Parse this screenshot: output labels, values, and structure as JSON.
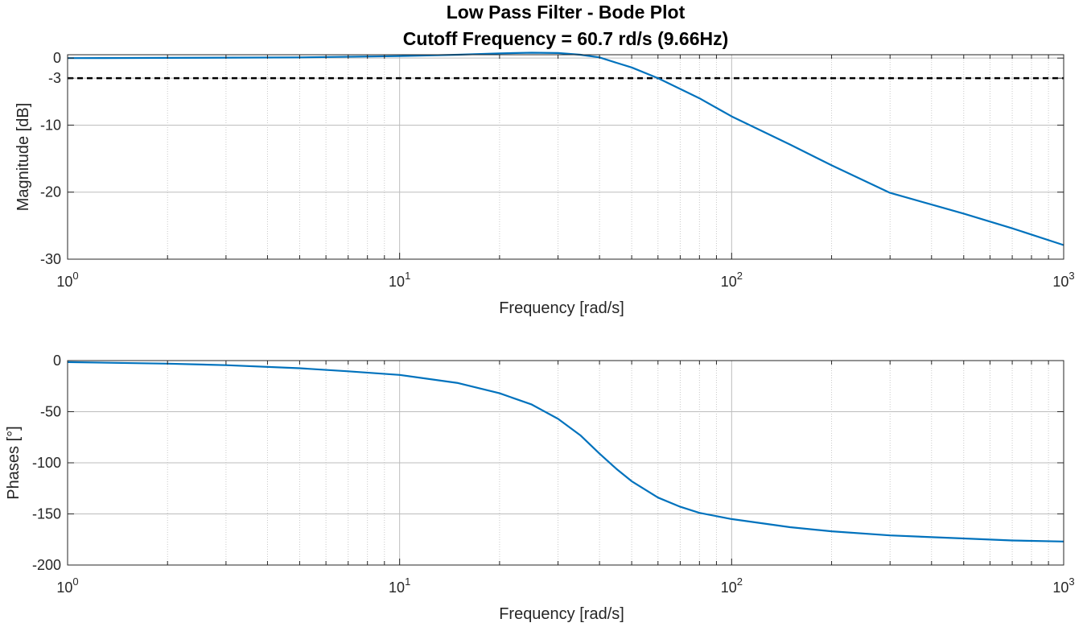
{
  "chart_data": [
    {
      "type": "line",
      "title": "Low Pass Filter - Bode Plot",
      "subtitle": "Cutoff Frequency = 60.7 rd/s (9.66Hz)",
      "xlabel": "Frequency [rad/s]",
      "ylabel": "Magnitude [dB]",
      "xscale": "log",
      "xlim": [
        1,
        1000
      ],
      "ylim": [
        -30,
        0.5
      ],
      "yticks": [
        0,
        -3,
        -10,
        -20,
        -30
      ],
      "ytick_labels": [
        "0",
        "-3",
        "-10",
        "-20",
        "-30"
      ],
      "xtick_labels": [
        {
          "base": "10",
          "exp": "0"
        },
        {
          "base": "10",
          "exp": "1"
        },
        {
          "base": "10",
          "exp": "2"
        },
        {
          "base": "10",
          "exp": "3"
        }
      ],
      "grid": true,
      "reference_line": {
        "y": -3,
        "style": "dashed",
        "color": "#000000"
      },
      "series": [
        {
          "color": "#0072BD",
          "x": [
            1,
            2,
            5,
            10,
            15,
            20,
            25,
            30,
            35,
            40,
            45,
            50,
            60,
            70,
            80,
            100,
            150,
            200,
            300,
            500,
            700,
            1000
          ],
          "y": [
            0.0,
            0.03,
            0.1,
            0.3,
            0.5,
            0.7,
            0.8,
            0.75,
            0.5,
            0.1,
            -0.7,
            -1.4,
            -3.0,
            -4.6,
            -6.0,
            -8.7,
            -12.9,
            -16.0,
            -20.1,
            -23.2,
            -25.4,
            -27.9
          ]
        }
      ]
    },
    {
      "type": "line",
      "xlabel": "Frequency [rad/s]",
      "ylabel": "Phases [°]",
      "xscale": "log",
      "xlim": [
        1,
        1000
      ],
      "ylim": [
        -200,
        0
      ],
      "yticks": [
        0,
        -50,
        -100,
        -150,
        -200
      ],
      "ytick_labels": [
        "0",
        "-50",
        "-100",
        "-150",
        "-200"
      ],
      "xtick_labels": [
        {
          "base": "10",
          "exp": "0"
        },
        {
          "base": "10",
          "exp": "1"
        },
        {
          "base": "10",
          "exp": "2"
        },
        {
          "base": "10",
          "exp": "3"
        }
      ],
      "grid": true,
      "series": [
        {
          "color": "#0072BD",
          "x": [
            1,
            2,
            3,
            5,
            7,
            10,
            15,
            20,
            25,
            30,
            35,
            40,
            45,
            50,
            60,
            70,
            80,
            100,
            150,
            200,
            300,
            500,
            700,
            1000
          ],
          "y": [
            -1.5,
            -3,
            -4.5,
            -7.5,
            -10.5,
            -14,
            -22,
            -32,
            -43,
            -57,
            -73,
            -91,
            -106,
            -118,
            -134,
            -143,
            -149,
            -155,
            -163,
            -167,
            -171,
            -174,
            -176,
            -177
          ]
        }
      ]
    }
  ]
}
